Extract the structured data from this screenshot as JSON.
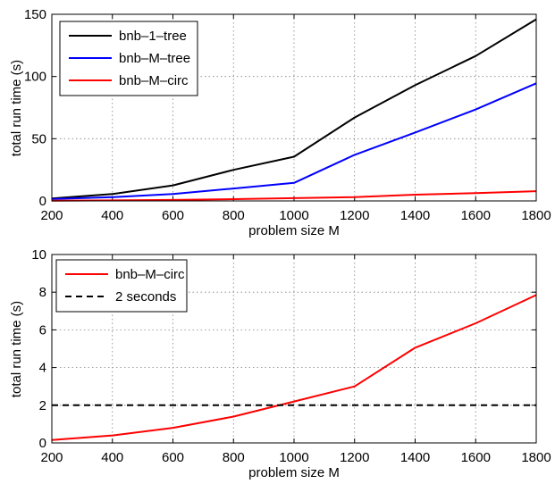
{
  "chart_data": [
    {
      "type": "line",
      "x": [
        200,
        400,
        600,
        800,
        1000,
        1200,
        1400,
        1600,
        1800
      ],
      "xlim": [
        200,
        1800
      ],
      "ylim": [
        0,
        150
      ],
      "xticks": [
        200,
        400,
        600,
        800,
        1000,
        1200,
        1400,
        1600,
        1800
      ],
      "yticks": [
        0,
        50,
        100,
        150
      ],
      "xlabel": "problem size M",
      "ylabel": "total run time (s)",
      "grid": true,
      "legend_position": "top-left",
      "series": [
        {
          "name": "bnb–1–tree",
          "color": "#000000",
          "dash": "solid",
          "values": [
            2,
            5.5,
            12.5,
            25,
            35.5,
            67,
            93,
            116.5,
            146
          ]
        },
        {
          "name": "bnb–M–tree",
          "color": "#0000ff",
          "dash": "solid",
          "values": [
            1.5,
            3,
            5.5,
            10,
            14.5,
            37,
            55,
            73.5,
            94.5
          ]
        },
        {
          "name": "bnb–M–circ",
          "color": "#ff0000",
          "dash": "solid",
          "values": [
            0.2,
            0.4,
            0.8,
            1.4,
            2.2,
            3,
            5,
            6.3,
            7.8
          ]
        }
      ]
    },
    {
      "type": "line",
      "x": [
        200,
        400,
        600,
        800,
        1000,
        1200,
        1400,
        1600,
        1800
      ],
      "xlim": [
        200,
        1800
      ],
      "ylim": [
        0,
        10
      ],
      "xticks": [
        200,
        400,
        600,
        800,
        1000,
        1200,
        1400,
        1600,
        1800
      ],
      "yticks": [
        0,
        2,
        4,
        6,
        8,
        10
      ],
      "xlabel": "problem size M",
      "ylabel": "total run time (s)",
      "grid": true,
      "legend_position": "top-left",
      "series": [
        {
          "name": "bnb–M–circ",
          "color": "#ff0000",
          "dash": "solid",
          "values": [
            0.15,
            0.4,
            0.8,
            1.4,
            2.2,
            3,
            5.05,
            6.35,
            7.85
          ]
        },
        {
          "name": "2 seconds",
          "color": "#000000",
          "dash": "dashed",
          "values": [
            2,
            2,
            2,
            2,
            2,
            2,
            2,
            2,
            2
          ]
        }
      ]
    }
  ]
}
